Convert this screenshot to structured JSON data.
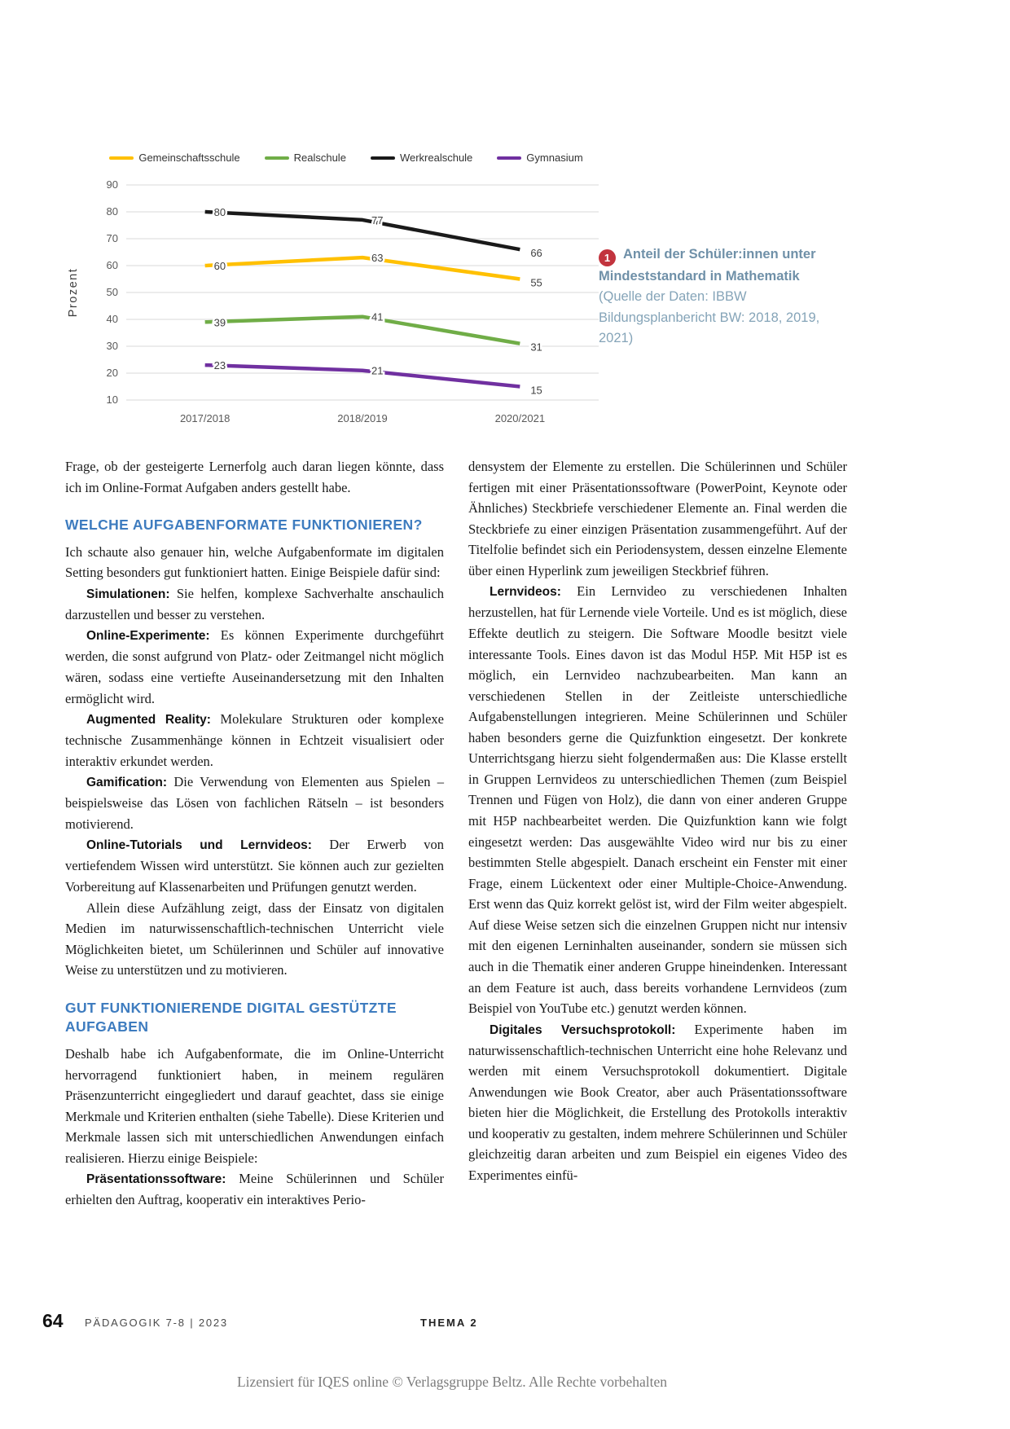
{
  "colors": {
    "heading_blue": "#3e7cbf",
    "caption_slate": "#6f90a8",
    "caption_source": "#85a4b8",
    "badge_red": "#c2343e",
    "gridline": "#d9d9d9",
    "axis_text": "#595959"
  },
  "chart_data": {
    "type": "line",
    "title": "",
    "categories": [
      "2017/2018",
      "2018/2019",
      "2020/2021"
    ],
    "series": [
      {
        "name": "Gemeinschaftsschule",
        "color": "#FFC000",
        "values": [
          60,
          63,
          55
        ]
      },
      {
        "name": "Realschule",
        "color": "#70AD47",
        "values": [
          39,
          41,
          31
        ]
      },
      {
        "name": "Werkrealschule",
        "color": "#1a1a1a",
        "values": [
          80,
          77,
          66
        ]
      },
      {
        "name": "Gymnasium",
        "color": "#7030A0",
        "values": [
          23,
          21,
          15
        ]
      }
    ],
    "xlabel": "",
    "ylabel": "Prozent",
    "ylim": [
      10,
      90
    ],
    "yticks": [
      10,
      20,
      30,
      40,
      50,
      60,
      70,
      80,
      90
    ],
    "grid": true,
    "legend_position": "top",
    "data_labels": true
  },
  "figure": {
    "caption": {
      "number": "1",
      "title": "Anteil der Schüler:innen unter Mindeststandard in Mathematik",
      "source": "(Quelle der Daten: IBBW Bildungsplanbericht BW: 2018, 2019, 2021)"
    }
  },
  "article": {
    "columns": {
      "left": [
        {
          "type": "p",
          "indent": false,
          "text": "Frage, ob der gesteigerte Lernerfolg auch daran liegen könnte, dass ich im Online-Format Aufgaben anders gestellt habe."
        },
        {
          "type": "h",
          "text": "WELCHE AUFGABENFORMATE FUNKTIONIEREN?"
        },
        {
          "type": "p",
          "indent": false,
          "text": "Ich schaute also genauer hin, welche Aufgabenformate im digitalen Setting besonders gut funktioniert hatten. Einige Beispiele dafür sind:"
        },
        {
          "type": "p",
          "indent": true,
          "lead": "Simulationen:",
          "text": "Sie helfen, komplexe Sachverhalte anschaulich darzustellen und besser zu verstehen."
        },
        {
          "type": "p",
          "indent": true,
          "lead": "Online-Experimente:",
          "text": "Es können Experimente durchgeführt werden, die sonst aufgrund von Platz- oder Zeitmangel nicht möglich wären, sodass eine vertiefte Auseinandersetzung mit den Inhalten ermöglicht wird."
        },
        {
          "type": "p",
          "indent": true,
          "lead": "Augmented Reality:",
          "text": "Molekulare Strukturen oder komplexe technische Zusammenhänge können in Echtzeit visualisiert oder interaktiv erkundet werden."
        },
        {
          "type": "p",
          "indent": true,
          "lead": "Gamification:",
          "text": "Die Verwendung von Elementen aus Spielen – beispielsweise das Lösen von fachlichen Rätseln – ist besonders motivierend."
        },
        {
          "type": "p",
          "indent": true,
          "lead": "Online-Tutorials und Lernvideos:",
          "text": "Der Erwerb von vertiefendem Wissen wird unterstützt. Sie können auch zur gezielten Vorbereitung auf Klassenarbeiten und Prüfungen genutzt werden."
        },
        {
          "type": "p",
          "indent": true,
          "text": "Allein diese Aufzählung zeigt, dass der Einsatz von digitalen Medien im naturwissenschaftlich-technischen Unterricht viele Möglichkeiten bietet, um Schülerinnen und Schüler auf innovative Weise zu unterstützen und zu motivieren."
        },
        {
          "type": "h",
          "text": "GUT FUNKTIONIERENDE DIGITAL GESTÜTZTE AUFGABEN"
        },
        {
          "type": "p",
          "indent": false,
          "text": "Deshalb habe ich Aufgabenformate, die im Online-Unterricht hervorragend funktioniert haben, in meinem regulären Präsenzunterricht eingegliedert und darauf geachtet, dass sie einige Merkmale und Kriterien enthalten (siehe Tabelle). Diese Kriterien und Merkmale lassen sich mit unterschiedlichen Anwendungen einfach realisieren. Hierzu einige Beispiele:"
        },
        {
          "type": "p",
          "indent": true,
          "lead": "Präsentationssoftware:",
          "text": "Meine Schülerinnen und Schüler erhielten den Auftrag, kooperativ ein interaktives Perio-"
        }
      ],
      "right": [
        {
          "type": "p",
          "indent": false,
          "text": "densystem der Elemente zu erstellen. Die Schülerinnen und Schüler fertigen mit einer Präsentationssoftware (PowerPoint, Keynote oder Ähnliches) Steckbriefe verschiedener Elemente an. Final werden die Steckbriefe zu einer einzigen Präsentation zusammengeführt. Auf der Titelfolie befindet sich ein Periodensystem, dessen einzelne Elemente über einen Hyperlink zum jeweiligen Steckbrief führen."
        },
        {
          "type": "p",
          "indent": true,
          "lead": "Lernvideos:",
          "text": "Ein Lernvideo zu verschiedenen Inhalten herzustellen, hat für Lernende viele Vorteile. Und es ist möglich, diese Effekte deutlich zu steigern. Die Software Moodle besitzt viele interessante Tools. Eines davon ist das Modul H5P. Mit H5P ist es möglich, ein Lernvideo nachzubearbeiten. Man kann an verschiedenen Stellen in der Zeitleiste unterschiedliche Aufgabenstellungen integrieren. Meine Schülerinnen und Schüler haben besonders gerne die Quizfunktion eingesetzt. Der konkrete Unterrichtsgang hierzu sieht folgendermaßen aus: Die Klasse erstellt in Gruppen Lernvideos zu unterschiedlichen Themen (zum Beispiel Trennen und Fügen von Holz), die dann von einer anderen Gruppe mit H5P nachbearbeitet werden. Die Quizfunktion kann wie folgt eingesetzt werden: Das ausgewählte Video wird nur bis zu einer bestimmten Stelle abgespielt. Danach erscheint ein Fenster mit einer Frage, einem Lückentext oder einer Multiple-Choice-Anwendung. Erst wenn das Quiz korrekt gelöst ist, wird der Film weiter abgespielt. Auf diese Weise setzen sich die einzelnen Gruppen nicht nur intensiv mit den eigenen Lerninhalten auseinander, sondern sie müssen sich auch in die Thematik einer anderen Gruppe hineindenken. Interessant an dem Feature ist auch, dass bereits vorhandene Lernvideos (zum Beispiel von YouTube etc.) genutzt werden können."
        },
        {
          "type": "p",
          "indent": true,
          "lead": "Digitales Versuchsprotokoll:",
          "text": "Experimente haben im naturwissenschaftlich-technischen Unterricht eine hohe Relevanz und werden mit einem Versuchsprotokoll dokumentiert. Digitale Anwendungen wie Book Creator, aber auch Präsentationssoftware bieten hier die Möglichkeit, die Erstellung des Protokolls interaktiv und kooperativ zu gestalten, indem mehrere Schülerinnen und Schüler gleichzeitig daran arbeiten und zum Beispiel ein eigenes Video des Experimentes einfü-"
        }
      ]
    }
  },
  "page": {
    "footer": {
      "page_number": "64",
      "journal": "PÄDAGOGIK 7-8 | 2023",
      "section": "THEMA 2",
      "license": "Lizensiert für IQES online © Verlagsgruppe Beltz. Alle Rechte vorbehalten"
    }
  }
}
